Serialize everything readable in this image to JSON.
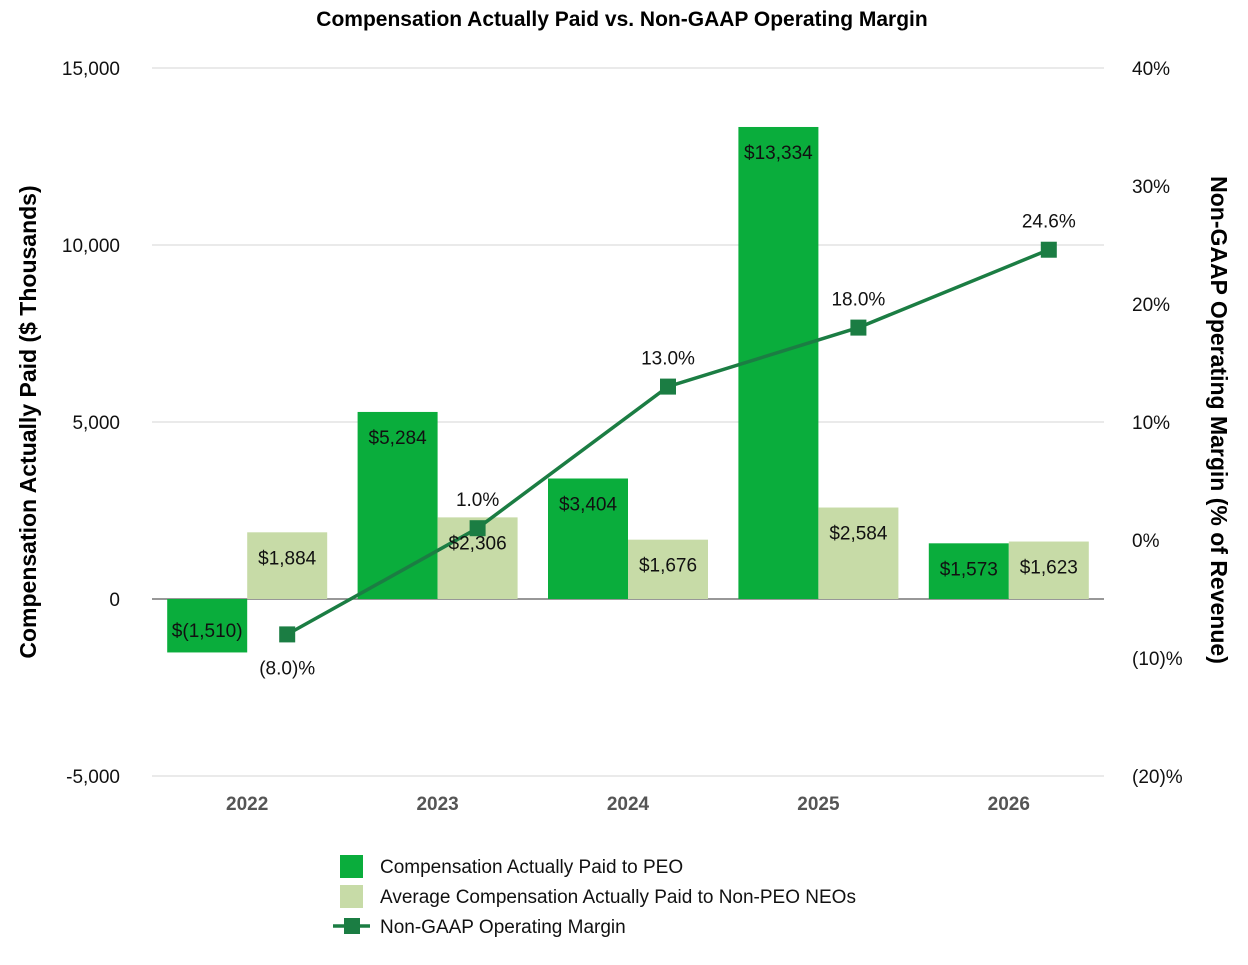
{
  "chart_data": {
    "type": "bar",
    "title": "Compensation Actually Paid vs. Non-GAAP Operating Margin",
    "categories": [
      "2022",
      "2023",
      "2024",
      "2025",
      "2026"
    ],
    "ylabel": "Compensation Actually Paid ($ Thousands)",
    "ylim": [
      -5000,
      15000
    ],
    "yticks": [
      15000,
      10000,
      5000,
      0,
      -5000
    ],
    "ytick_labels": [
      "15,000",
      "10,000",
      "5,000",
      "0",
      "-5,000"
    ],
    "y2label": "Non-GAAP Operating Margin (% of Revenue)",
    "y2lim": [
      -20,
      40
    ],
    "y2ticks": [
      40,
      30,
      20,
      10,
      0,
      -10,
      -20
    ],
    "y2tick_labels": [
      "40%",
      "30%",
      "20%",
      "10%",
      "0%",
      "(10)%",
      "(20)%"
    ],
    "grid": true,
    "legend_position": "bottom",
    "series": [
      {
        "name": "Compensation Actually Paid to PEO",
        "kind": "bar",
        "axis": "left",
        "color": "#0aad3c",
        "values": [
          -1510,
          5284,
          3404,
          13334,
          1573
        ],
        "labels": [
          "$(1,510)",
          "$5,284",
          "$3,404",
          "$13,334",
          "$1,573"
        ]
      },
      {
        "name": "Average Compensation Actually Paid to Non-PEO NEOs",
        "kind": "bar",
        "axis": "left",
        "color": "#c7dba7",
        "values": [
          1884,
          2306,
          1676,
          2584,
          1623
        ],
        "labels": [
          "$1,884",
          "$2,306",
          "$1,676",
          "$2,584",
          "$1,623"
        ]
      },
      {
        "name": "Non-GAAP Operating Margin",
        "kind": "line",
        "axis": "right",
        "color": "#1b7d43",
        "values": [
          -8.0,
          1.0,
          13.0,
          18.0,
          24.6
        ],
        "labels": [
          "(8.0)%",
          "1.0%",
          "13.0%",
          "18.0%",
          "24.6%"
        ]
      }
    ]
  }
}
